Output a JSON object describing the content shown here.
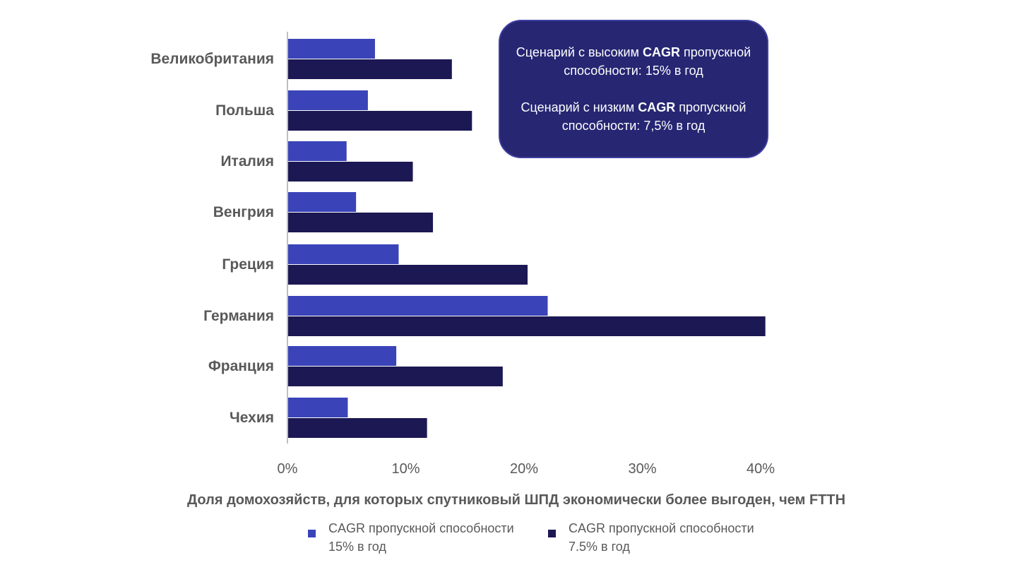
{
  "note": {
    "high": {
      "before": "Сценарий с высоким ",
      "bold": "CAGR",
      "after": " пропускной способности: 15% в год"
    },
    "low": {
      "before": "Сценарий с низким ",
      "bold": "CAGR",
      "after": " пропускной способности: 7,5% в год"
    }
  },
  "colors": {
    "series_high": "#3a43b8",
    "series_low": "#1c1853",
    "axis": "#bfbfbf",
    "text": "#595959",
    "note_bg": "#262673"
  },
  "chart_data": {
    "type": "bar",
    "orientation": "horizontal",
    "categories": [
      "Великобритания",
      "Польша",
      "Италия",
      "Венгрия",
      "Греция",
      "Германия",
      "Франция",
      "Чехия"
    ],
    "series": [
      {
        "name": "CAGR пропускной способности 15% в год",
        "legend_lines": [
          "CAGR пропускной способности",
          "15% в год"
        ],
        "color": "#3a43b8",
        "values": [
          7.4,
          6.8,
          5.0,
          5.8,
          9.4,
          22.0,
          9.2,
          5.1
        ]
      },
      {
        "name": "CAGR пропускной способности 7.5% в год",
        "legend_lines": [
          "CAGR пропускной способности",
          "7.5% в год"
        ],
        "color": "#1c1853",
        "values": [
          13.9,
          15.6,
          10.6,
          12.3,
          20.3,
          40.4,
          18.2,
          11.8
        ]
      }
    ],
    "xticks": [
      "0%",
      "10%",
      "20%",
      "30%",
      "40%"
    ],
    "xtick_values": [
      0,
      10,
      20,
      30,
      40
    ],
    "xlim": [
      0,
      40
    ],
    "xlabel": "Доля домохозяйств, для которых спутниковый ШПД экономически более выгоден, чем FTTH",
    "ylabel": "",
    "title": "",
    "grid": false,
    "legend_position": "bottom"
  }
}
